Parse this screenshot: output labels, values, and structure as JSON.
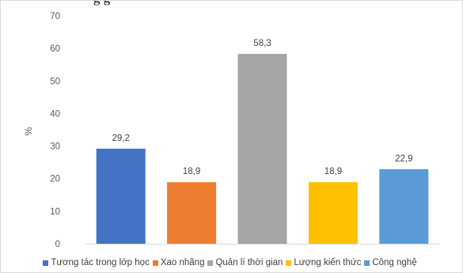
{
  "heading_fragment": "g                   g",
  "chart_data": {
    "type": "bar",
    "categories": [
      "Tương tác trong lớp học",
      "Xao nhãng",
      "Quản lí thời gian",
      "Lượng kiến thức",
      "Công nghệ"
    ],
    "values": [
      29.2,
      18.9,
      58.3,
      18.9,
      22.9
    ],
    "value_labels": [
      "29,2",
      "18,9",
      "58,3",
      "18,9",
      "22,9"
    ],
    "colors": [
      "#4472C4",
      "#ED7D31",
      "#A5A5A5",
      "#FFC000",
      "#5B9BD5"
    ],
    "ylabel": "%",
    "xlabel": "",
    "ylim": [
      0,
      70
    ],
    "yticks": [
      0,
      10,
      20,
      30,
      40,
      50,
      60,
      70
    ],
    "grid": false,
    "legend_position": "bottom"
  }
}
